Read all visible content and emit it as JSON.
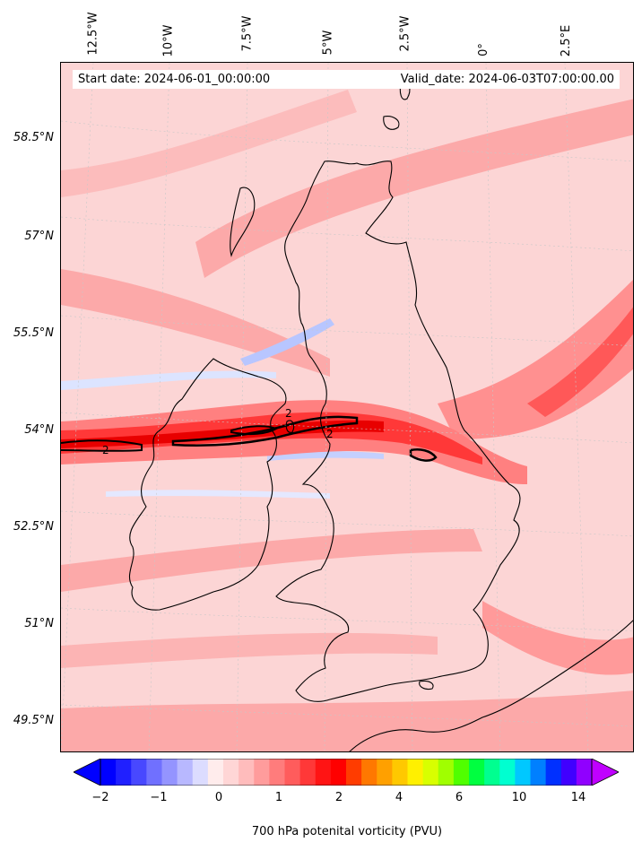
{
  "header": {
    "start_date": "Start date: 2024-06-01_00:00:00",
    "valid_date": "Valid_date: 2024-06-03T07:00:00.00"
  },
  "longitude_labels": [
    "12.5°W",
    "10°W",
    "7.5°W",
    "5°W",
    "2.5°W",
    "0°",
    "2.5°E"
  ],
  "latitude_labels": [
    "58.5°N",
    "57°N",
    "55.5°N",
    "54°N",
    "52.5°N",
    "51°N",
    "49.5°N"
  ],
  "contour_labels": [
    "2",
    "2",
    "2"
  ],
  "colorbar": {
    "label": "700 hPa potenital vorticity (PVU)",
    "ticks": [
      "−2",
      "−1",
      "0",
      "1",
      "2",
      "4",
      "6",
      "10",
      "14"
    ],
    "colors": [
      "#0000ff",
      "#2020ff",
      "#4848ff",
      "#7070ff",
      "#9494ff",
      "#b8b8ff",
      "#dcdcff",
      "#ffecec",
      "#ffd6d6",
      "#ffbcbc",
      "#ff9c9c",
      "#ff7c7c",
      "#ff5c5c",
      "#ff3838",
      "#ff1414",
      "#ff0000",
      "#ff3c00",
      "#ff7800",
      "#ffa000",
      "#ffc800",
      "#fff000",
      "#d8ff00",
      "#a0ff00",
      "#50ff00",
      "#00ff40",
      "#00ff90",
      "#00ffd0",
      "#00c8ff",
      "#0080ff",
      "#0030ff",
      "#4000ff",
      "#9000ff"
    ],
    "left_arrow_color": "#0000ff",
    "right_arrow_color": "#c000ff"
  },
  "colors": {
    "background_field": "#fcd5d5",
    "band_high": "#ff1010",
    "band_mid": "#ff8080",
    "band_low": "#fca9a9",
    "negative": "#dce4ff"
  }
}
